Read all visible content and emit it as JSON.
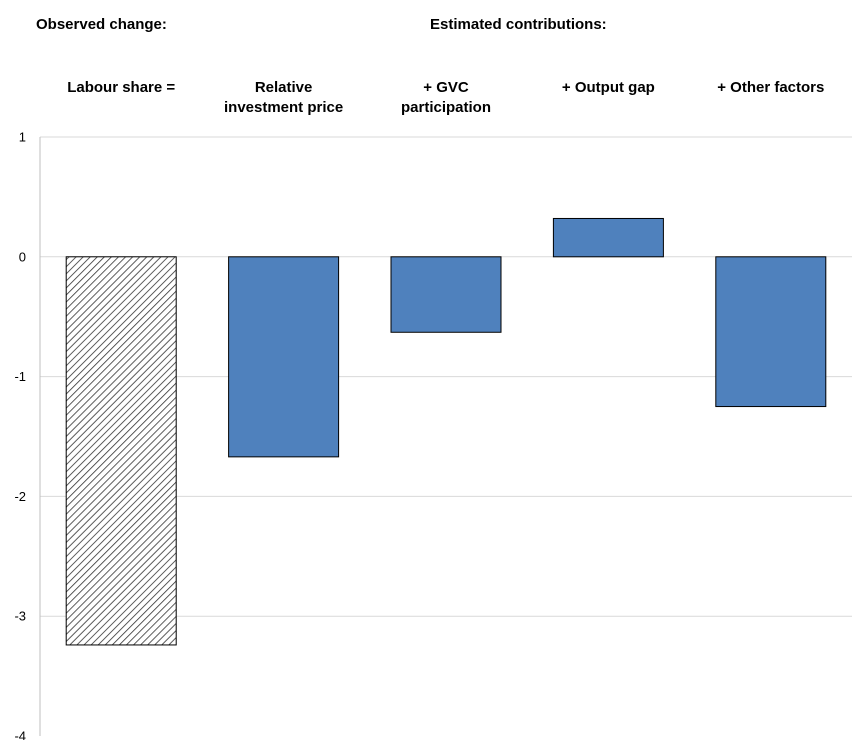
{
  "headers": {
    "observed": "Observed change:",
    "estimated": "Estimated contributions:"
  },
  "chart_data": {
    "type": "bar",
    "categories": [
      "Labour share =",
      "Relative\ninvestment price",
      "+ GVC\nparticipation",
      "+ Output gap",
      "+ Other factors"
    ],
    "values": [
      -3.24,
      -1.67,
      -0.63,
      0.32,
      -1.25
    ],
    "ylim": [
      -4,
      1
    ],
    "yticks": [
      1,
      0,
      -1,
      -2,
      -3,
      -4
    ],
    "grid": true,
    "colors": {
      "observed": "#hatched-black",
      "contribution": "#4F81BD"
    }
  }
}
